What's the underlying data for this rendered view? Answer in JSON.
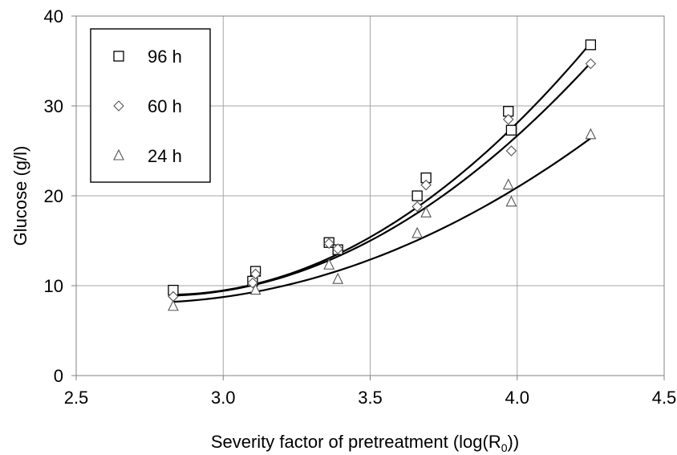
{
  "chart_data": {
    "type": "scatter",
    "xlabel": "Severity factor of pretreatment  (log(R",
    "xlabel_sub": "0",
    "xlabel_end": "))",
    "ylabel": "Glucose  (g/l)",
    "xlim": [
      2.5,
      4.5
    ],
    "ylim": [
      0,
      40
    ],
    "x_ticks": [
      "2.5",
      "3.0",
      "3.5",
      "4.0",
      "4.5"
    ],
    "y_ticks": [
      "0",
      "10",
      "20",
      "30",
      "40"
    ],
    "x_tick_values": [
      2.5,
      3.0,
      3.5,
      4.0,
      4.5
    ],
    "y_tick_values": [
      0,
      10,
      20,
      30,
      40
    ],
    "grid": true,
    "legend_position": "top-left",
    "series": [
      {
        "name": "96 h",
        "marker": "square",
        "x": [
          2.83,
          3.1,
          3.11,
          3.36,
          3.39,
          3.66,
          3.69,
          3.97,
          3.98,
          4.25
        ],
        "y": [
          9.5,
          10.5,
          11.6,
          14.8,
          14.0,
          20.0,
          22.0,
          29.4,
          27.3,
          36.8
        ],
        "fit": [
          2.83,
          9.0,
          3.5,
          15.4,
          4.25,
          37.0
        ]
      },
      {
        "name": "60 h",
        "marker": "diamond",
        "x": [
          2.83,
          3.1,
          3.11,
          3.36,
          3.39,
          3.66,
          3.69,
          3.97,
          3.98,
          4.25
        ],
        "y": [
          8.8,
          10.3,
          11.3,
          14.7,
          14.1,
          18.8,
          21.2,
          28.5,
          25.0,
          34.7
        ],
        "fit": [
          2.83,
          8.9,
          3.5,
          15.0,
          4.25,
          34.8
        ]
      },
      {
        "name": "24 h",
        "marker": "triangle",
        "x": [
          2.83,
          3.11,
          3.36,
          3.39,
          3.66,
          3.69,
          3.97,
          3.98,
          4.25
        ],
        "y": [
          7.7,
          9.5,
          12.3,
          10.7,
          15.8,
          18.1,
          21.2,
          19.3,
          26.8
        ],
        "fit": [
          2.83,
          8.2,
          3.5,
          12.9,
          4.25,
          26.4
        ]
      }
    ]
  }
}
